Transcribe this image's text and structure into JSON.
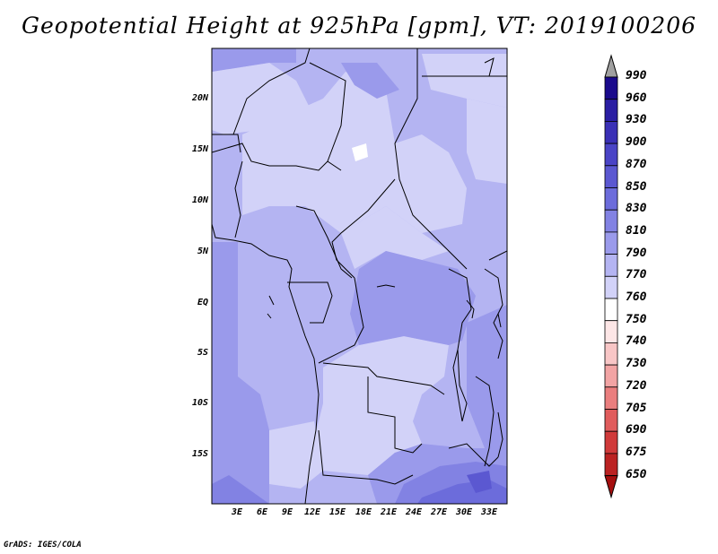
{
  "title": "Geopotential Height at 925hPa [gpm], VT: 2019100206",
  "lat_ticks": [
    "20N",
    "15N",
    "10N",
    "5N",
    "EQ",
    "5S",
    "10S",
    "15S"
  ],
  "lon_ticks": [
    "3E",
    "6E",
    "9E",
    "12E",
    "15E",
    "18E",
    "21E",
    "24E",
    "27E",
    "30E",
    "33E"
  ],
  "colorbar": {
    "levels": [
      "990",
      "960",
      "930",
      "900",
      "870",
      "850",
      "830",
      "810",
      "790",
      "770",
      "760",
      "750",
      "740",
      "730",
      "720",
      "705",
      "690",
      "675",
      "650"
    ],
    "colors": [
      "#1a0a8c",
      "#2a1ea3",
      "#3a30b6",
      "#4a44c6",
      "#5b58d1",
      "#6c6cdb",
      "#8282e3",
      "#9a9aeb",
      "#b4b4f2",
      "#d2d2f8",
      "#ffffff",
      "#fde6e6",
      "#f8c6c6",
      "#f2a4a4",
      "#ea7e7e",
      "#e05c5c",
      "#d03a3a",
      "#bb2222",
      "#a50f0f"
    ],
    "over_color": "#a0a0a0",
    "under_color": "#a50f0f"
  },
  "credit": "GrADS: IGES/COLA"
}
